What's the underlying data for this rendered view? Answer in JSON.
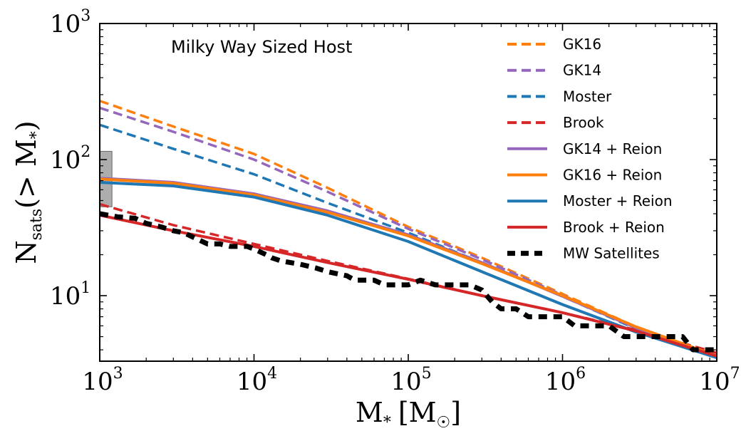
{
  "chart_data": {
    "type": "line",
    "title": "Milky Way Sized Host",
    "xlabel": {
      "base": "M",
      "sub": "*",
      "unit_open": "[M",
      "unit_sub": "☉",
      "unit_close": "]"
    },
    "ylabel": {
      "base": "N",
      "sub": "sats",
      "rest": "(> M",
      "rest_sub": "*",
      "close": ")"
    },
    "x_scale": "log",
    "y_scale": "log",
    "xlim": [
      1000,
      10000000
    ],
    "ylim": [
      3.3,
      1000
    ],
    "x_ticks": [
      {
        "value": 1000,
        "base": "10",
        "exp": "3"
      },
      {
        "value": 10000,
        "base": "10",
        "exp": "4"
      },
      {
        "value": 100000,
        "base": "10",
        "exp": "5"
      },
      {
        "value": 1000000,
        "base": "10",
        "exp": "6"
      },
      {
        "value": 10000000,
        "base": "10",
        "exp": "7"
      }
    ],
    "y_ticks": [
      {
        "value": 10,
        "base": "10",
        "exp": "1"
      },
      {
        "value": 100,
        "base": "10",
        "exp": "2"
      },
      {
        "value": 1000,
        "base": "10",
        "exp": "3"
      }
    ],
    "legend_position": "top-right",
    "observed_range": {
      "x": [
        1000,
        1200
      ],
      "y": [
        45,
        115
      ],
      "color": "#999999"
    },
    "series": [
      {
        "name": "GK16",
        "style": "dashed",
        "color": "#ff7f0e",
        "points": [
          [
            1000,
            270
          ],
          [
            3000,
            175
          ],
          [
            10000,
            110
          ],
          [
            30000,
            62
          ],
          [
            100000,
            32
          ],
          [
            300000,
            19
          ],
          [
            1000000,
            10.3
          ],
          [
            3000000,
            5.9
          ],
          [
            10000000,
            3.6
          ]
        ]
      },
      {
        "name": "GK14",
        "style": "dashed",
        "color": "#9467bd",
        "points": [
          [
            1000,
            240
          ],
          [
            3000,
            160
          ],
          [
            10000,
            100
          ],
          [
            30000,
            58
          ],
          [
            100000,
            31
          ],
          [
            300000,
            18.5
          ],
          [
            1000000,
            10.1
          ],
          [
            3000000,
            5.8
          ],
          [
            10000000,
            3.6
          ]
        ]
      },
      {
        "name": "Moster",
        "style": "dashed",
        "color": "#1f77b4",
        "points": [
          [
            1000,
            180
          ],
          [
            3000,
            120
          ],
          [
            10000,
            78
          ],
          [
            30000,
            48
          ],
          [
            100000,
            29
          ],
          [
            300000,
            17.5
          ],
          [
            1000000,
            9.9
          ],
          [
            3000000,
            5.7
          ],
          [
            10000000,
            3.6
          ]
        ]
      },
      {
        "name": "Brook",
        "style": "dashed",
        "color": "#d62728",
        "points": [
          [
            1000,
            47
          ],
          [
            3000,
            33
          ],
          [
            10000,
            24
          ],
          [
            30000,
            18
          ],
          [
            100000,
            13.3
          ],
          [
            300000,
            10
          ],
          [
            1000000,
            7.5
          ],
          [
            3000000,
            5.6
          ],
          [
            10000000,
            3.8
          ]
        ]
      },
      {
        "name": "GK14 + Reion",
        "style": "solid",
        "color": "#9467bd",
        "points": [
          [
            1000,
            73
          ],
          [
            3000,
            68
          ],
          [
            10000,
            56
          ],
          [
            30000,
            42
          ],
          [
            100000,
            28
          ],
          [
            300000,
            17.5
          ],
          [
            1000000,
            9.9
          ],
          [
            3000000,
            5.8
          ],
          [
            10000000,
            3.6
          ]
        ]
      },
      {
        "name": "GK16 + Reion",
        "style": "solid",
        "color": "#ff7f0e",
        "points": [
          [
            1000,
            72
          ],
          [
            3000,
            67
          ],
          [
            10000,
            55
          ],
          [
            30000,
            41
          ],
          [
            100000,
            27.5
          ],
          [
            300000,
            17.2
          ],
          [
            1000000,
            10
          ],
          [
            3000000,
            5.9
          ],
          [
            10000000,
            3.6
          ]
        ]
      },
      {
        "name": "Moster + Reion",
        "style": "solid",
        "color": "#1f77b4",
        "points": [
          [
            1000,
            68
          ],
          [
            3000,
            64
          ],
          [
            10000,
            53
          ],
          [
            30000,
            39
          ],
          [
            100000,
            25
          ],
          [
            300000,
            15
          ],
          [
            1000000,
            8.6
          ],
          [
            3000000,
            5.4
          ],
          [
            10000000,
            3.5
          ]
        ]
      },
      {
        "name": "Brook + Reion",
        "style": "solid",
        "color": "#d62728",
        "points": [
          [
            1000,
            39
          ],
          [
            3000,
            30
          ],
          [
            10000,
            23
          ],
          [
            30000,
            17.5
          ],
          [
            100000,
            13.2
          ],
          [
            300000,
            10
          ],
          [
            1000000,
            7.5
          ],
          [
            3000000,
            5.5
          ],
          [
            10000000,
            3.6
          ]
        ]
      },
      {
        "name": "MW Satellites",
        "style": "dashed-thick",
        "color": "#000000",
        "points": [
          [
            1000,
            40
          ],
          [
            1300,
            38
          ],
          [
            1700,
            37
          ],
          [
            2000,
            34
          ],
          [
            2500,
            32
          ],
          [
            3000,
            30
          ],
          [
            3500,
            29
          ],
          [
            4000,
            27
          ],
          [
            5000,
            24
          ],
          [
            6000,
            24
          ],
          [
            7000,
            23
          ],
          [
            9000,
            23
          ],
          [
            10000,
            22
          ],
          [
            12000,
            20
          ],
          [
            13000,
            19
          ],
          [
            15000,
            18
          ],
          [
            20000,
            17
          ],
          [
            25000,
            16
          ],
          [
            30000,
            15
          ],
          [
            40000,
            14
          ],
          [
            45000,
            13
          ],
          [
            60000,
            13
          ],
          [
            70000,
            12
          ],
          [
            100000,
            12
          ],
          [
            120000,
            13
          ],
          [
            150000,
            12
          ],
          [
            200000,
            12
          ],
          [
            250000,
            12
          ],
          [
            300000,
            11
          ],
          [
            350000,
            9
          ],
          [
            400000,
            8
          ],
          [
            500000,
            8
          ],
          [
            600000,
            7
          ],
          [
            800000,
            7
          ],
          [
            1000000,
            7
          ],
          [
            1200000,
            6
          ],
          [
            1500000,
            6
          ],
          [
            2000000,
            6
          ],
          [
            2500000,
            5
          ],
          [
            3000000,
            5
          ],
          [
            4000000,
            5
          ],
          [
            5000000,
            5
          ],
          [
            6000000,
            5
          ],
          [
            7000000,
            4
          ],
          [
            8000000,
            4
          ],
          [
            10000000,
            4
          ]
        ]
      }
    ]
  }
}
